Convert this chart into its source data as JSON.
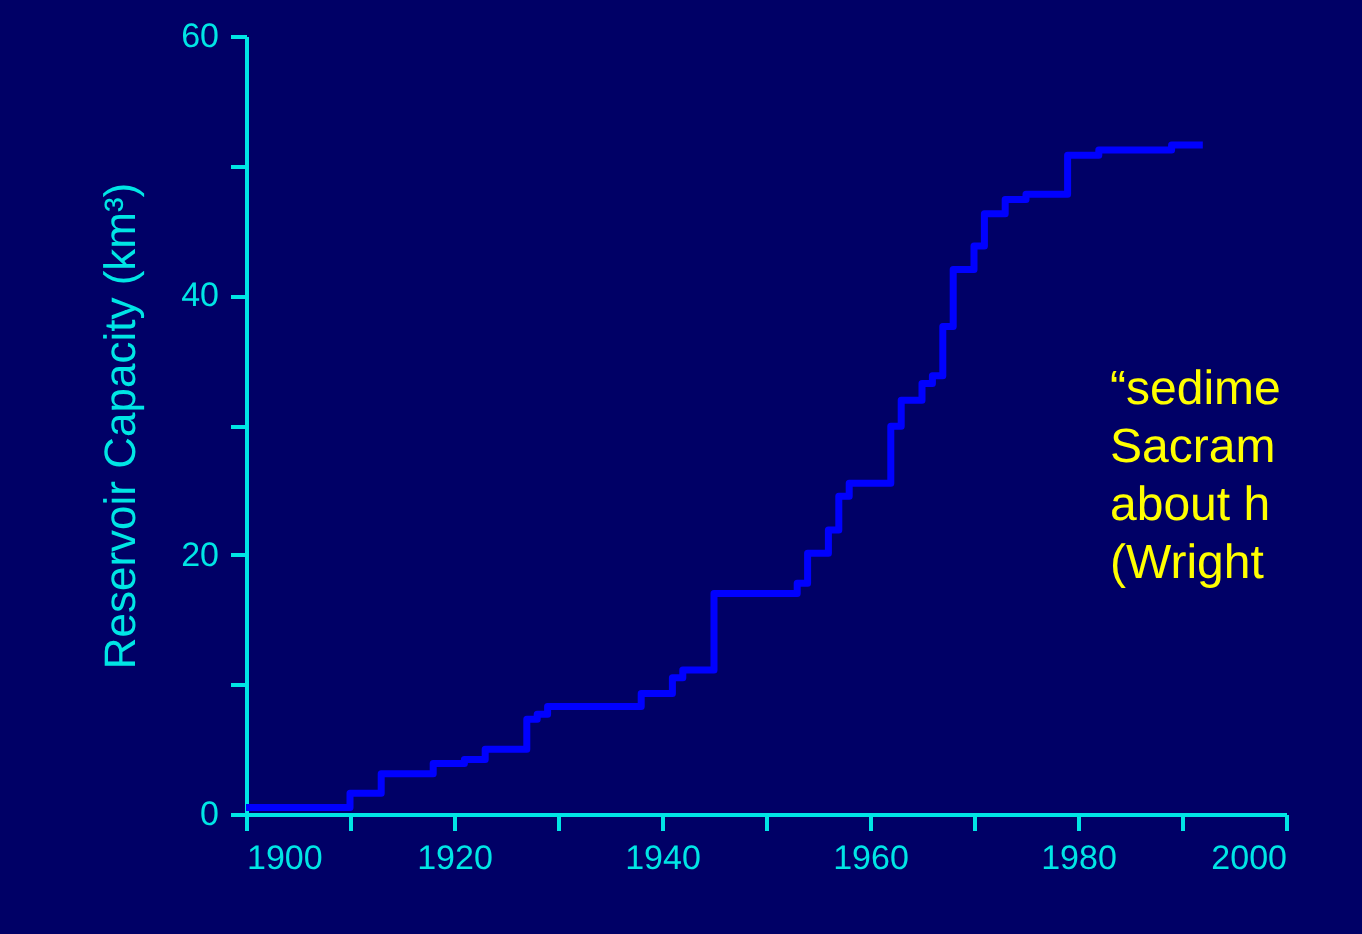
{
  "chart_data": {
    "type": "step",
    "ylabel": "Reservoir Capacity (km³)",
    "x": [
      1900,
      1910,
      1913,
      1918,
      1921,
      1923,
      1927,
      1928,
      1929,
      1938,
      1941,
      1942,
      1945,
      1953,
      1954,
      1956,
      1957,
      1958,
      1962,
      1963,
      1965,
      1966,
      1967,
      1968,
      1970,
      1971,
      1973,
      1975,
      1979,
      1982,
      1989,
      1992
    ],
    "series": [
      {
        "color": "#0000ff",
        "values": [
          0.5,
          1.6,
          3.1,
          3.9,
          4.2,
          5.0,
          7.3,
          7.7,
          8.3,
          9.3,
          10.5,
          11.1,
          17.0,
          17.8,
          20.1,
          21.9,
          24.5,
          25.5,
          29.9,
          31.9,
          33.2,
          33.8,
          37.6,
          42.0,
          43.8,
          46.3,
          47.4,
          47.8,
          50.8,
          51.2,
          51.6,
          51.6
        ]
      }
    ],
    "xlim": [
      1900,
      2000
    ],
    "xticks": [
      1900,
      {
        "value": 1910,
        "label": null
      },
      1920,
      {
        "value": 1930,
        "label": null
      },
      1940,
      {
        "value": 1950,
        "label": null
      },
      1960,
      {
        "value": 1970,
        "label": null
      },
      1980,
      {
        "value": 1990,
        "label": null
      },
      2000
    ],
    "ylim": [
      0,
      60
    ],
    "yticks": [
      0,
      {
        "value": 10,
        "label": null
      },
      20,
      {
        "value": 30,
        "label": null
      },
      40,
      {
        "value": 50,
        "label": null
      },
      60
    ],
    "annotations": [
      "“sedime\nSacram\nabout h\n(Wright"
    ],
    "grid": false,
    "marker": "none",
    "line_style": "solid"
  }
}
